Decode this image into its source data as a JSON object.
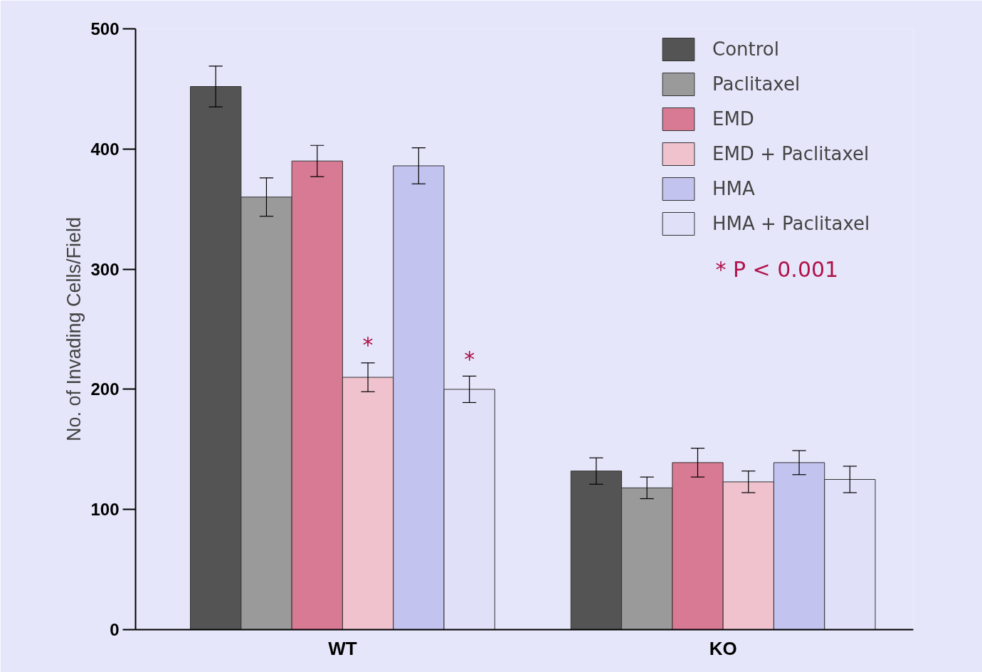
{
  "chart_data": {
    "type": "bar",
    "ylabel": "No. of Invading Cells/Field",
    "categories": [
      "WT",
      "KO"
    ],
    "ylim": [
      0,
      500
    ],
    "yticks": [
      0,
      100,
      200,
      300,
      400,
      500
    ],
    "grid": false,
    "legend": "top right",
    "series": [
      {
        "name": "Control",
        "color": "#545454",
        "values": [
          452,
          132
        ],
        "errors": [
          17,
          11
        ]
      },
      {
        "name": "Paclitaxel",
        "color": "#9a9a9a",
        "values": [
          360,
          118
        ],
        "errors": [
          16,
          9
        ]
      },
      {
        "name": "EMD",
        "color": "#d87a93",
        "values": [
          390,
          139
        ],
        "errors": [
          13,
          12
        ]
      },
      {
        "name": "EMD + Paclitaxel",
        "color": "#efc2ce",
        "values": [
          210,
          123
        ],
        "errors": [
          12,
          9
        ]
      },
      {
        "name": "HMA",
        "color": "#c3c3f0",
        "values": [
          386,
          139
        ],
        "errors": [
          15,
          10
        ]
      },
      {
        "name": "HMA + Paclitaxel",
        "color": "#e0e0f8",
        "values": [
          200,
          125
        ],
        "errors": [
          11,
          11
        ]
      }
    ],
    "annotations": [
      {
        "text": "*",
        "x": "WT",
        "y": 223
      },
      "*",
      "* P < 0.001"
    ]
  }
}
